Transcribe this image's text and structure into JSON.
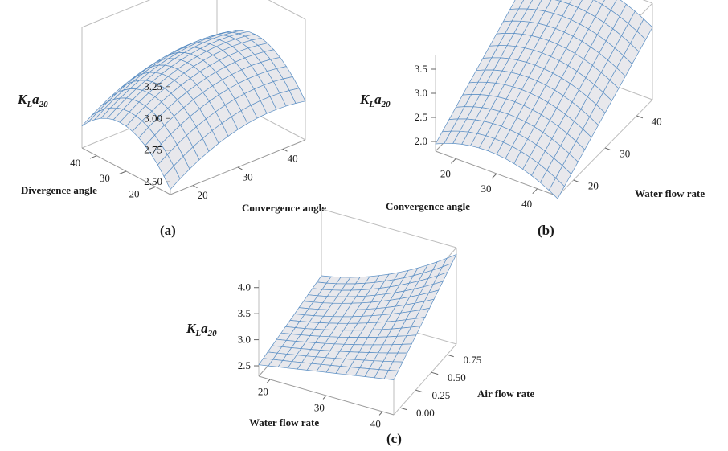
{
  "chart_data": [
    {
      "type": "surface",
      "panel_label": "(a)",
      "z_label_main": "K",
      "z_label_sub1": "L",
      "z_label_mid": "a",
      "z_label_sub2": "20",
      "x_label": "Convergence angle",
      "y_label": "Divergence angle",
      "x_range": [
        15,
        45
      ],
      "y_range": [
        15,
        45
      ],
      "z_range": [
        2.4,
        3.35
      ],
      "x_ticks": [
        "20",
        "30",
        "40"
      ],
      "y_ticks": [
        "20",
        "30",
        "40"
      ],
      "z_ticks": [
        "2.50",
        "2.75",
        "3.00",
        "3.25"
      ],
      "x_tick_values": [
        20,
        30,
        40
      ],
      "y_tick_values": [
        20,
        30,
        40
      ],
      "z_tick_values": [
        2.5,
        2.75,
        3.0,
        3.25
      ],
      "model": {
        "c": 3.05,
        "x0": 38,
        "ax": 0.00055,
        "y0": 32,
        "ay": 0.0011,
        "bx": 0.012
      },
      "surface_z_range": [
        2.45,
        3.24
      ]
    },
    {
      "type": "surface",
      "panel_label": "(b)",
      "z_label_main": "K",
      "z_label_sub1": "L",
      "z_label_mid": "a",
      "z_label_sub2": "20",
      "x_label": "Convergence angle",
      "y_label": "Water flow rate",
      "x_range": [
        15,
        45
      ],
      "y_range": [
        15,
        45
      ],
      "z_range": [
        1.8,
        3.8
      ],
      "x_ticks": [
        "20",
        "30",
        "40"
      ],
      "y_ticks": [
        "20",
        "30",
        "40"
      ],
      "z_ticks": [
        "2.0",
        "2.5",
        "3.0",
        "3.5"
      ],
      "x_tick_values": [
        20,
        30,
        40
      ],
      "y_tick_values": [
        20,
        30,
        40
      ],
      "z_tick_values": [
        2.0,
        2.5,
        3.0,
        3.5
      ],
      "surface_z_range": [
        1.95,
        3.62
      ]
    },
    {
      "type": "surface",
      "panel_label": "(c)",
      "z_label_main": "K",
      "z_label_sub1": "L",
      "z_label_mid": "a",
      "z_label_sub2": "20",
      "x_label": "Water flow rate",
      "y_label": "Air flow rate",
      "x_range": [
        18,
        42
      ],
      "y_range": [
        -0.1,
        0.9
      ],
      "z_range": [
        2.3,
        4.15
      ],
      "x_ticks": [
        "20",
        "30",
        "40"
      ],
      "y_ticks": [
        "0.00",
        "0.25",
        "0.50",
        "0.75"
      ],
      "z_ticks": [
        "2.5",
        "3.0",
        "3.5",
        "4.0"
      ],
      "x_tick_values": [
        20,
        30,
        40
      ],
      "y_tick_values": [
        0.0,
        0.25,
        0.5,
        0.75
      ],
      "z_tick_values": [
        2.5,
        3.0,
        3.5,
        4.0
      ],
      "surface_z_range": [
        2.5,
        4.0
      ]
    }
  ]
}
